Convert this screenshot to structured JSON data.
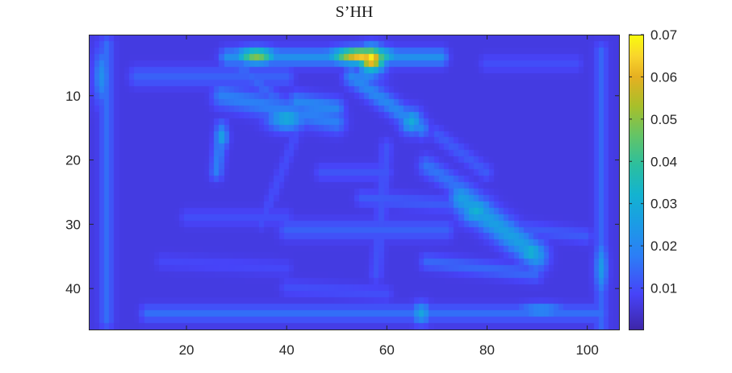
{
  "chart_data": {
    "type": "heatmap",
    "title": "S’HH",
    "xlabel": "",
    "ylabel": "",
    "xlim": [
      0.5,
      106.5
    ],
    "ylim": [
      0.5,
      46.5
    ],
    "y_reversed": true,
    "x_ticks": [
      20,
      40,
      60,
      80,
      100
    ],
    "y_ticks": [
      10,
      20,
      30,
      40
    ],
    "colorbar": {
      "range": [
        0.0,
        0.07
      ],
      "ticks": [
        0.01,
        0.02,
        0.03,
        0.04,
        0.05,
        0.06,
        0.07
      ],
      "tick_labels": [
        "0.01",
        "0.02",
        "0.03",
        "0.04",
        "0.05",
        "0.06",
        "0.07"
      ],
      "colormap": "parula"
    },
    "background_value": 0.006,
    "features": [
      {
        "kind": "line",
        "x1": 28,
        "y1": 4,
        "x2": 71,
        "y2": 4,
        "width": 1.3,
        "value": 0.022
      },
      {
        "kind": "blob",
        "x": 34,
        "y": 3.8,
        "rx": 4,
        "ry": 1.2,
        "value": 0.05
      },
      {
        "kind": "blob",
        "x": 55,
        "y": 3.8,
        "rx": 6,
        "ry": 1.2,
        "value": 0.065
      },
      {
        "kind": "blob",
        "x": 57,
        "y": 4.3,
        "rx": 2.5,
        "ry": 1.8,
        "value": 0.07
      },
      {
        "kind": "blob",
        "x": 56,
        "y": 7,
        "rx": 3,
        "ry": 1.5,
        "value": 0.02
      },
      {
        "kind": "line",
        "x1": 4,
        "y1": 2,
        "x2": 4,
        "y2": 45,
        "width": 1.3,
        "value": 0.015
      },
      {
        "kind": "blob",
        "x": 3,
        "y": 7,
        "rx": 1.5,
        "ry": 4,
        "value": 0.022
      },
      {
        "kind": "line",
        "x1": 103,
        "y1": 3,
        "x2": 103,
        "y2": 46,
        "width": 1.2,
        "value": 0.014
      },
      {
        "kind": "blob",
        "x": 103,
        "y": 37,
        "rx": 1.2,
        "ry": 4,
        "value": 0.025
      },
      {
        "kind": "line",
        "x1": 12,
        "y1": 44,
        "x2": 103,
        "y2": 44,
        "width": 1.2,
        "value": 0.015
      },
      {
        "kind": "blob",
        "x": 91,
        "y": 43.5,
        "rx": 5,
        "ry": 1,
        "value": 0.022
      },
      {
        "kind": "blob",
        "x": 67,
        "y": 44,
        "rx": 1.8,
        "ry": 1.5,
        "value": 0.028
      },
      {
        "kind": "line",
        "x1": 10,
        "y1": 7,
        "x2": 40,
        "y2": 7,
        "width": 1.5,
        "value": 0.013
      },
      {
        "kind": "line",
        "x1": 27,
        "y1": 10,
        "x2": 50,
        "y2": 14,
        "width": 1.8,
        "value": 0.018
      },
      {
        "kind": "blob",
        "x": 40,
        "y": 13.5,
        "rx": 3.5,
        "ry": 1.8,
        "value": 0.03
      },
      {
        "kind": "line",
        "x1": 42,
        "y1": 11,
        "x2": 50,
        "y2": 12,
        "width": 1.5,
        "value": 0.02
      },
      {
        "kind": "line",
        "x1": 53,
        "y1": 7,
        "x2": 67,
        "y2": 15,
        "width": 1.5,
        "value": 0.02
      },
      {
        "kind": "blob",
        "x": 65,
        "y": 14,
        "rx": 2,
        "ry": 1.8,
        "value": 0.03
      },
      {
        "kind": "line",
        "x1": 27,
        "y1": 15,
        "x2": 26,
        "y2": 22,
        "width": 1.2,
        "value": 0.018
      },
      {
        "kind": "blob",
        "x": 27,
        "y": 16.5,
        "rx": 1.2,
        "ry": 1.8,
        "value": 0.027
      },
      {
        "kind": "line",
        "x1": 30,
        "y1": 5,
        "x2": 40,
        "y2": 12,
        "width": 1.2,
        "value": 0.014
      },
      {
        "kind": "line",
        "x1": 75,
        "y1": 26,
        "x2": 90,
        "y2": 35,
        "width": 2.2,
        "value": 0.026
      },
      {
        "kind": "blob",
        "x": 78,
        "y": 28,
        "rx": 3,
        "ry": 2,
        "value": 0.032
      },
      {
        "kind": "blob",
        "x": 89,
        "y": 34.5,
        "rx": 2.5,
        "ry": 1.6,
        "value": 0.033
      },
      {
        "kind": "line",
        "x1": 68,
        "y1": 21,
        "x2": 78,
        "y2": 26,
        "width": 1.5,
        "value": 0.016
      },
      {
        "kind": "line",
        "x1": 70,
        "y1": 16,
        "x2": 80,
        "y2": 22,
        "width": 1.2,
        "value": 0.012
      },
      {
        "kind": "line",
        "x1": 40,
        "y1": 31,
        "x2": 72,
        "y2": 31,
        "width": 1.5,
        "value": 0.013
      },
      {
        "kind": "line",
        "x1": 55,
        "y1": 26,
        "x2": 72,
        "y2": 27,
        "width": 1.2,
        "value": 0.012
      },
      {
        "kind": "line",
        "x1": 20,
        "y1": 29,
        "x2": 40,
        "y2": 29,
        "width": 1.2,
        "value": 0.01
      },
      {
        "kind": "line",
        "x1": 60,
        "y1": 18,
        "x2": 58,
        "y2": 38,
        "width": 1.2,
        "value": 0.011
      },
      {
        "kind": "line",
        "x1": 47,
        "y1": 22,
        "x2": 60,
        "y2": 22,
        "width": 1.2,
        "value": 0.011
      },
      {
        "kind": "line",
        "x1": 80,
        "y1": 30,
        "x2": 100,
        "y2": 32,
        "width": 1.2,
        "value": 0.012
      },
      {
        "kind": "line",
        "x1": 15,
        "y1": 36,
        "x2": 40,
        "y2": 37,
        "width": 1.2,
        "value": 0.009
      },
      {
        "kind": "line",
        "x1": 68,
        "y1": 36,
        "x2": 90,
        "y2": 38,
        "width": 1.2,
        "value": 0.014
      },
      {
        "kind": "line",
        "x1": 40,
        "y1": 40,
        "x2": 60,
        "y2": 41,
        "width": 1.2,
        "value": 0.01
      },
      {
        "kind": "line",
        "x1": 80,
        "y1": 5,
        "x2": 98,
        "y2": 5,
        "width": 1.2,
        "value": 0.01
      },
      {
        "kind": "line",
        "x1": 42,
        "y1": 16,
        "x2": 35,
        "y2": 30,
        "width": 1,
        "value": 0.01
      }
    ]
  }
}
